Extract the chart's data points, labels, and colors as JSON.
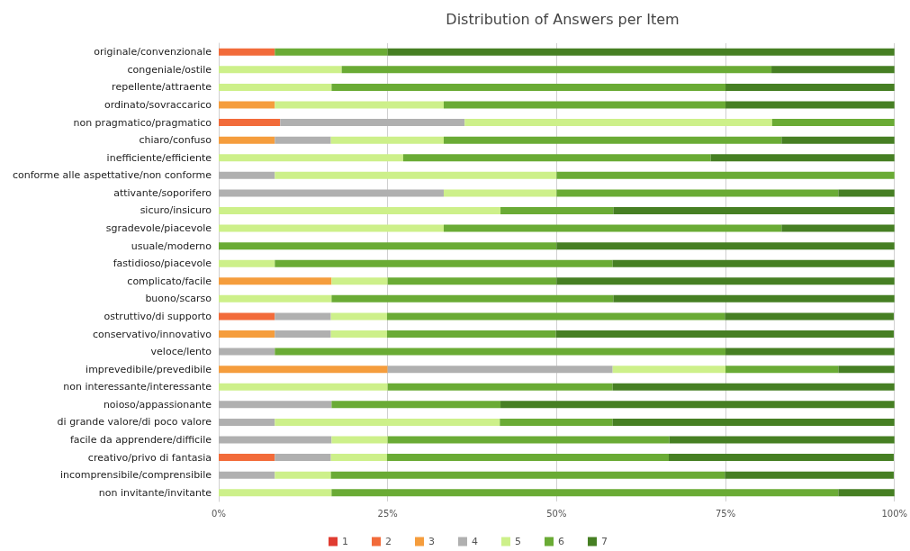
{
  "chart_data": {
    "type": "bar",
    "orientation": "horizontal",
    "stacked": true,
    "title": "Distribution of Answers per Item",
    "categories": [
      "originale/convenzionale",
      "congeniale/ostile",
      "repellente/attraente",
      "ordinato/sovraccarico",
      "non pragmatico/pragmatico",
      "chiaro/confuso",
      "inefficiente/efficiente",
      "conforme alle aspettative/non conforme",
      "attivante/soporifero",
      "sicuro/insicuro",
      "sgradevole/piacevole",
      "usuale/moderno",
      "fastidioso/piacevole",
      "complicato/facile",
      "buono/scarso",
      "ostruttivo/di supporto",
      "conservativo/innovativo",
      "veloce/lento",
      "imprevedibile/prevedibile",
      "non interessante/interessante",
      "noioso/appassionante",
      "di grande valore/di poco valore",
      "facile da apprendere/difficile",
      "creativo/privo di fantasia",
      "incomprensibile/comprensibile",
      "non invitante/invitante"
    ],
    "series": [
      {
        "name": "1",
        "color": "#e03c31",
        "values": [
          0,
          0,
          0,
          0,
          0,
          0,
          0,
          0,
          0,
          0,
          0,
          0,
          0,
          0,
          0,
          0,
          0,
          0,
          0,
          0,
          0,
          0,
          0,
          0,
          0,
          0
        ]
      },
      {
        "name": "2",
        "color": "#f26b3a",
        "values": [
          8.3,
          0,
          0,
          0,
          9.1,
          0,
          0,
          0,
          0,
          0,
          0,
          0,
          0,
          0,
          0,
          8.3,
          0,
          0,
          0,
          0,
          0,
          0,
          0,
          8.3,
          0,
          0
        ]
      },
      {
        "name": "3",
        "color": "#f59d3d",
        "values": [
          0,
          0,
          0,
          8.3,
          0,
          8.3,
          0,
          0,
          0,
          0,
          0,
          0,
          0,
          16.7,
          0,
          0,
          8.3,
          0,
          25,
          0,
          0,
          0,
          0,
          0,
          0,
          0
        ]
      },
      {
        "name": "4",
        "color": "#b0b0b0",
        "values": [
          0,
          0,
          0,
          0,
          27.3,
          8.3,
          0,
          8.3,
          33.3,
          0,
          0,
          0,
          0,
          0,
          0,
          8.3,
          8.3,
          8.3,
          33.3,
          0,
          16.7,
          8.3,
          16.7,
          8.3,
          8.3,
          0
        ]
      },
      {
        "name": "5",
        "color": "#cdf08a",
        "values": [
          0,
          18.2,
          16.7,
          25,
          45.5,
          16.7,
          27.3,
          41.7,
          16.7,
          41.7,
          33.3,
          0,
          8.3,
          8.3,
          16.7,
          8.3,
          8.3,
          0,
          16.7,
          25,
          0,
          33.3,
          8.3,
          8.3,
          8.3,
          16.7
        ]
      },
      {
        "name": "6",
        "color": "#6aab35",
        "values": [
          16.7,
          63.6,
          58.3,
          41.7,
          18.2,
          50,
          45.5,
          50,
          41.7,
          16.7,
          50,
          50,
          50,
          25,
          41.7,
          50,
          25,
          66.7,
          16.7,
          33.3,
          25,
          16.7,
          41.7,
          41.7,
          58.3,
          75
        ]
      },
      {
        "name": "7",
        "color": "#467f23",
        "values": [
          75,
          18.2,
          25,
          25,
          0,
          16.7,
          27.3,
          0,
          8.3,
          41.7,
          16.7,
          50,
          41.7,
          50,
          41.7,
          25,
          50,
          25,
          8.3,
          41.7,
          58.3,
          41.7,
          33.3,
          33.3,
          25,
          8.3
        ]
      }
    ],
    "xlim": [
      0,
      100
    ],
    "xticks": [
      {
        "value": 0,
        "label": "0%"
      },
      {
        "value": 25,
        "label": "25%"
      },
      {
        "value": 50,
        "label": "50%"
      },
      {
        "value": 75,
        "label": "75%"
      },
      {
        "value": 100,
        "label": "100%"
      }
    ],
    "grid": "x",
    "legend": "bottom"
  }
}
